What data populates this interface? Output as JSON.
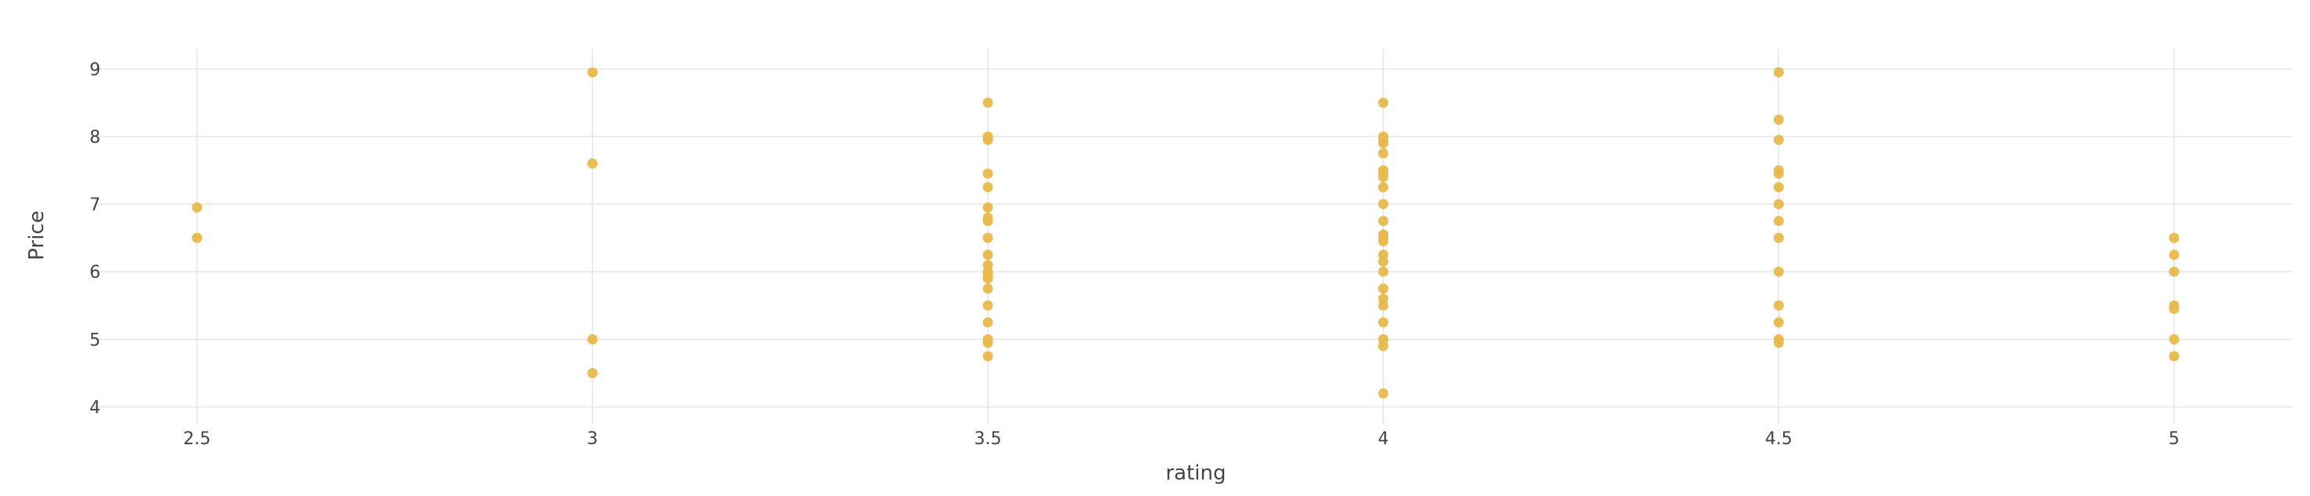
{
  "chart_data": {
    "type": "scatter",
    "title": "",
    "xlabel": "rating",
    "ylabel": "Price",
    "xlim": [
      2.37,
      5.15
    ],
    "ylim": [
      3.75,
      9.3
    ],
    "xticks": [
      2.5,
      3,
      3.5,
      4,
      4.5,
      5
    ],
    "xtick_labels": [
      "2.5",
      "3",
      "3.5",
      "4",
      "4.5",
      "5"
    ],
    "yticks": [
      4,
      5,
      6,
      7,
      8,
      9
    ],
    "ytick_labels": [
      "4",
      "5",
      "6",
      "7",
      "8",
      "9"
    ],
    "grid": true,
    "legend": "none",
    "marker_color": "#e8b84b",
    "series": [
      {
        "points": [
          [
            2.5,
            6.95
          ],
          [
            2.5,
            6.5
          ],
          [
            3,
            8.95
          ],
          [
            3,
            7.6
          ],
          [
            3,
            5.0
          ],
          [
            3,
            4.5
          ],
          [
            3.5,
            8.5
          ],
          [
            3.5,
            8.0
          ],
          [
            3.5,
            7.95
          ],
          [
            3.5,
            7.45
          ],
          [
            3.5,
            7.25
          ],
          [
            3.5,
            6.95
          ],
          [
            3.5,
            6.8
          ],
          [
            3.5,
            6.75
          ],
          [
            3.5,
            6.5
          ],
          [
            3.5,
            6.25
          ],
          [
            3.5,
            6.1
          ],
          [
            3.5,
            6.0
          ],
          [
            3.5,
            5.95
          ],
          [
            3.5,
            5.9
          ],
          [
            3.5,
            5.75
          ],
          [
            3.5,
            5.5
          ],
          [
            3.5,
            5.25
          ],
          [
            3.5,
            5.0
          ],
          [
            3.5,
            4.95
          ],
          [
            3.5,
            4.75
          ],
          [
            4,
            8.5
          ],
          [
            4,
            8.0
          ],
          [
            4,
            7.95
          ],
          [
            4,
            7.9
          ],
          [
            4,
            7.75
          ],
          [
            4,
            7.5
          ],
          [
            4,
            7.45
          ],
          [
            4,
            7.4
          ],
          [
            4,
            7.25
          ],
          [
            4,
            7.0
          ],
          [
            4,
            6.75
          ],
          [
            4,
            6.55
          ],
          [
            4,
            6.5
          ],
          [
            4,
            6.45
          ],
          [
            4,
            6.25
          ],
          [
            4,
            6.15
          ],
          [
            4,
            6.0
          ],
          [
            4,
            5.75
          ],
          [
            4,
            5.6
          ],
          [
            4,
            5.5
          ],
          [
            4,
            5.25
          ],
          [
            4,
            5.0
          ],
          [
            4,
            4.9
          ],
          [
            4,
            4.2
          ],
          [
            4.5,
            8.95
          ],
          [
            4.5,
            8.25
          ],
          [
            4.5,
            7.95
          ],
          [
            4.5,
            7.5
          ],
          [
            4.5,
            7.45
          ],
          [
            4.5,
            7.25
          ],
          [
            4.5,
            7.0
          ],
          [
            4.5,
            6.75
          ],
          [
            4.5,
            6.5
          ],
          [
            4.5,
            6.0
          ],
          [
            4.5,
            5.5
          ],
          [
            4.5,
            5.25
          ],
          [
            4.5,
            5.0
          ],
          [
            4.5,
            4.95
          ],
          [
            5,
            6.5
          ],
          [
            5,
            6.25
          ],
          [
            5,
            6.0
          ],
          [
            5,
            5.5
          ],
          [
            5,
            5.45
          ],
          [
            5,
            5.0
          ],
          [
            5,
            4.75
          ]
        ]
      }
    ]
  }
}
